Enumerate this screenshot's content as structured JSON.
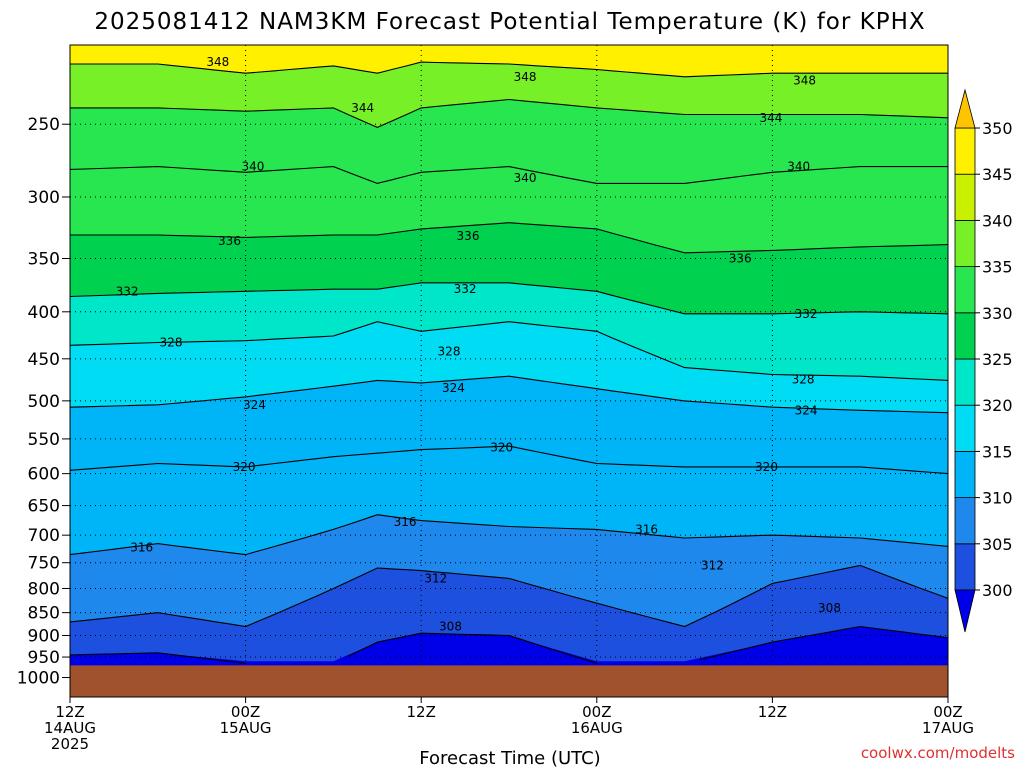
{
  "chart_data": {
    "type": "heatmap",
    "title": "2025081412 NAM3KM Forecast Potential Temperature (K) for KPHX",
    "xlabel": "Forecast Time (UTC)",
    "ylabel": "",
    "credit": "coolwx.com/modelts",
    "x_range_hours": [
      0,
      60
    ],
    "x_ticks": [
      {
        "hour": 0,
        "lines": [
          "12Z",
          "14AUG",
          "2025"
        ]
      },
      {
        "hour": 12,
        "lines": [
          "00Z",
          "15AUG"
        ]
      },
      {
        "hour": 24,
        "lines": [
          "12Z"
        ]
      },
      {
        "hour": 36,
        "lines": [
          "00Z",
          "16AUG"
        ]
      },
      {
        "hour": 48,
        "lines": [
          "12Z"
        ]
      },
      {
        "hour": 60,
        "lines": [
          "00Z",
          "17AUG"
        ]
      }
    ],
    "y_axis": "pressure (hPa), log scale, inverted",
    "y_range": [
      205,
      1050
    ],
    "y_ticks": [
      250,
      300,
      350,
      400,
      450,
      500,
      550,
      600,
      650,
      700,
      750,
      800,
      850,
      900,
      950,
      1000
    ],
    "grid": true,
    "surface_pressure": 970,
    "colorbar": {
      "levels": [
        300,
        305,
        310,
        315,
        320,
        325,
        330,
        335,
        340,
        345,
        350
      ],
      "colors": [
        "#0000e8",
        "#1e50e0",
        "#1e88ec",
        "#00b4f8",
        "#00dcf4",
        "#00e6c8",
        "#00d250",
        "#28e650",
        "#78f028",
        "#c8f000",
        "#fff000",
        "#ffc400"
      ],
      "extend": "both",
      "position": "right"
    },
    "ground_color": "#a0522d",
    "isentropes_hpa_by_hour": {
      "hours": [
        0,
        6,
        12,
        18,
        21,
        24,
        30,
        36,
        42,
        48,
        54,
        60
      ],
      "levels": {
        "308": [
          945,
          940,
          null,
          null,
          915,
          895,
          900,
          null,
          null,
          915,
          880,
          905
        ],
        "312": [
          870,
          850,
          880,
          800,
          760,
          765,
          780,
          830,
          880,
          790,
          755,
          820
        ],
        "316": [
          735,
          715,
          735,
          690,
          665,
          675,
          685,
          690,
          705,
          700,
          705,
          720
        ],
        "320": [
          595,
          585,
          590,
          575,
          570,
          565,
          560,
          585,
          590,
          590,
          590,
          600
        ],
        "324": [
          508,
          505,
          495,
          482,
          475,
          478,
          470,
          485,
          500,
          508,
          512,
          515
        ],
        "328": [
          435,
          432,
          430,
          425,
          410,
          420,
          410,
          420,
          460,
          468,
          470,
          475
        ],
        "332": [
          385,
          382,
          380,
          378,
          378,
          372,
          372,
          380,
          402,
          402,
          400,
          402
        ],
        "336": [
          330,
          330,
          332,
          330,
          330,
          325,
          320,
          325,
          345,
          343,
          340,
          338
        ],
        "340": [
          280,
          278,
          282,
          278,
          290,
          282,
          278,
          290,
          290,
          282,
          278,
          278
        ],
        "344": [
          240,
          240,
          242,
          240,
          252,
          240,
          235,
          240,
          244,
          244,
          244,
          246
        ],
        "348": [
          215,
          215,
          220,
          216,
          220,
          214,
          215,
          218,
          222,
          220,
          220,
          220
        ]
      }
    },
    "contour_labels": [
      {
        "value": "348",
        "hour": 10.1,
        "hpa": 214
      },
      {
        "value": "348",
        "hour": 31.1,
        "hpa": 222
      },
      {
        "value": "348",
        "hour": 50.2,
        "hpa": 224
      },
      {
        "value": "344",
        "hour": 20.0,
        "hpa": 240
      },
      {
        "value": "344",
        "hour": 47.9,
        "hpa": 246
      },
      {
        "value": "340",
        "hour": 12.5,
        "hpa": 278
      },
      {
        "value": "340",
        "hour": 31.1,
        "hpa": 286
      },
      {
        "value": "340",
        "hour": 49.8,
        "hpa": 278
      },
      {
        "value": "336",
        "hour": 10.9,
        "hpa": 335
      },
      {
        "value": "336",
        "hour": 27.2,
        "hpa": 331
      },
      {
        "value": "336",
        "hour": 45.8,
        "hpa": 350
      },
      {
        "value": "332",
        "hour": 3.9,
        "hpa": 380
      },
      {
        "value": "332",
        "hour": 27.0,
        "hpa": 378
      },
      {
        "value": "332",
        "hour": 50.3,
        "hpa": 402
      },
      {
        "value": "328",
        "hour": 6.9,
        "hpa": 432
      },
      {
        "value": "328",
        "hour": 25.9,
        "hpa": 442
      },
      {
        "value": "328",
        "hour": 50.1,
        "hpa": 474
      },
      {
        "value": "324",
        "hour": 12.6,
        "hpa": 505
      },
      {
        "value": "324",
        "hour": 26.2,
        "hpa": 484
      },
      {
        "value": "324",
        "hour": 50.3,
        "hpa": 512
      },
      {
        "value": "320",
        "hour": 11.9,
        "hpa": 590
      },
      {
        "value": "320",
        "hour": 29.5,
        "hpa": 562
      },
      {
        "value": "320",
        "hour": 47.6,
        "hpa": 590
      },
      {
        "value": "316",
        "hour": 4.9,
        "hpa": 722
      },
      {
        "value": "316",
        "hour": 22.9,
        "hpa": 677
      },
      {
        "value": "316",
        "hour": 39.4,
        "hpa": 690
      },
      {
        "value": "312",
        "hour": 25.0,
        "hpa": 780
      },
      {
        "value": "312",
        "hour": 43.9,
        "hpa": 755
      },
      {
        "value": "308",
        "hour": 26.0,
        "hpa": 880
      },
      {
        "value": "308",
        "hour": 51.9,
        "hpa": 840
      }
    ]
  }
}
